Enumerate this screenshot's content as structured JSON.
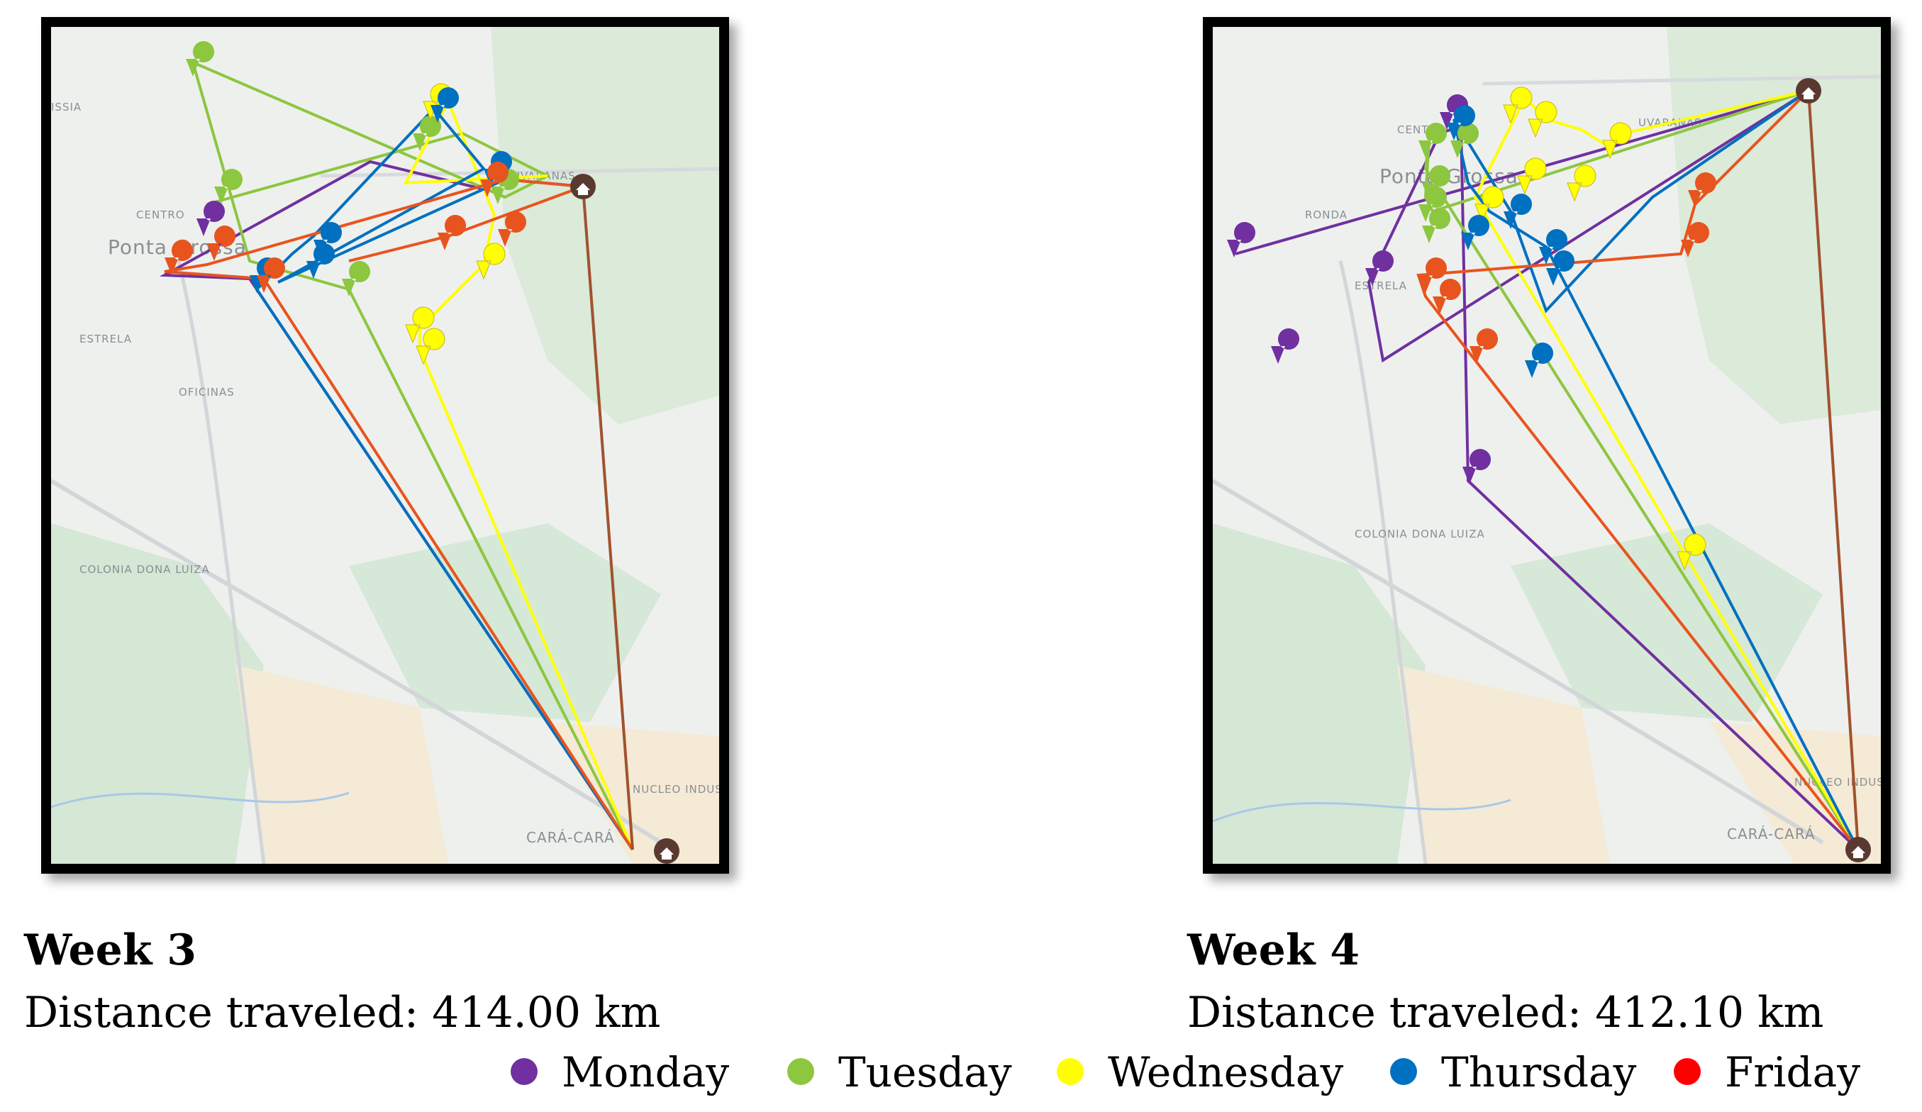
{
  "colors": {
    "monday": "#7030a0",
    "tuesday": "#8dc63f",
    "wednesday": "#ffff00",
    "thursday": "#0070c0",
    "friday": "#ff0000",
    "route_friday": "#e8541e",
    "depot": "#5a3a30",
    "map_base": "#eef0ee",
    "map_green": "#d4e8d6",
    "map_sand": "#f6edd8"
  },
  "icons": {
    "stop_marker": "map-pin-icon",
    "depot_marker": "house-icon"
  },
  "map_labels": [
    "ISSIA",
    "CENTRO",
    "Ponta Grossa",
    "ESTRELA",
    "OFICINAS",
    "COLONIA DONA LUIZA",
    "UVARANAS",
    "NUCLEO INDUSTRIAL",
    "CARÁ-CARÁ",
    "RONDA"
  ],
  "panels": [
    {
      "title": "Week 3",
      "distance": "Distance traveled: 414.00 km"
    },
    {
      "title": "Week 4",
      "distance": "Distance traveled: 412.10 km"
    }
  ],
  "legend": [
    {
      "day": "monday",
      "label": "Monday"
    },
    {
      "day": "tuesday",
      "label": "Tuesday"
    },
    {
      "day": "wednesday",
      "label": "Wednesday"
    },
    {
      "day": "thursday",
      "label": "Thursday"
    },
    {
      "day": "friday",
      "label": "Friday"
    }
  ]
}
